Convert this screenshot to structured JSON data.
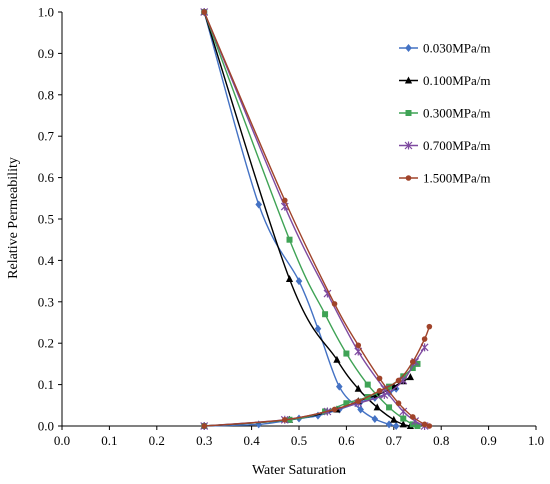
{
  "chart_data": {
    "type": "line",
    "xlabel": "Water Saturation",
    "ylabel": "Relative Permeability",
    "xlim": [
      0.0,
      1.0
    ],
    "ylim": [
      0.0,
      1.0
    ],
    "xticks": [
      "0.0",
      "0.1",
      "0.2",
      "0.3",
      "0.4",
      "0.5",
      "0.6",
      "0.7",
      "0.8",
      "0.9",
      "1.0"
    ],
    "yticks": [
      "0.0",
      "0.1",
      "0.2",
      "0.3",
      "0.4",
      "0.5",
      "0.6",
      "0.7",
      "0.8",
      "0.9",
      "1.0"
    ],
    "grid": false,
    "legend_position": "right",
    "series": [
      {
        "name": "0.030MPa/m",
        "color": "#4472C4",
        "marker": "diamond",
        "kro": [
          [
            0.3,
            1.0
          ],
          [
            0.415,
            0.535
          ],
          [
            0.5,
            0.35
          ],
          [
            0.54,
            0.235
          ],
          [
            0.585,
            0.095
          ],
          [
            0.63,
            0.04
          ],
          [
            0.66,
            0.017
          ],
          [
            0.69,
            0.004
          ],
          [
            0.705,
            0.0
          ]
        ],
        "krw": [
          [
            0.3,
            0.0
          ],
          [
            0.415,
            0.004
          ],
          [
            0.5,
            0.018
          ],
          [
            0.54,
            0.025
          ],
          [
            0.585,
            0.04
          ],
          [
            0.63,
            0.058
          ],
          [
            0.66,
            0.068
          ],
          [
            0.69,
            0.08
          ],
          [
            0.705,
            0.09
          ]
        ]
      },
      {
        "name": "0.100MPa/m",
        "color": "#000000",
        "marker": "triangle",
        "kro": [
          [
            0.3,
            1.0
          ],
          [
            0.48,
            0.355
          ],
          [
            0.58,
            0.16
          ],
          [
            0.625,
            0.09
          ],
          [
            0.665,
            0.045
          ],
          [
            0.7,
            0.015
          ],
          [
            0.72,
            0.004
          ],
          [
            0.735,
            0.0
          ]
        ],
        "krw": [
          [
            0.3,
            0.0
          ],
          [
            0.48,
            0.015
          ],
          [
            0.58,
            0.04
          ],
          [
            0.625,
            0.06
          ],
          [
            0.665,
            0.075
          ],
          [
            0.7,
            0.095
          ],
          [
            0.72,
            0.108
          ],
          [
            0.735,
            0.118
          ]
        ]
      },
      {
        "name": "0.300MPa/m",
        "color": "#3FA355",
        "marker": "square",
        "kro": [
          [
            0.3,
            1.0
          ],
          [
            0.48,
            0.45
          ],
          [
            0.555,
            0.27
          ],
          [
            0.6,
            0.175
          ],
          [
            0.645,
            0.1
          ],
          [
            0.69,
            0.045
          ],
          [
            0.72,
            0.018
          ],
          [
            0.74,
            0.004
          ],
          [
            0.75,
            0.0
          ]
        ],
        "krw": [
          [
            0.3,
            0.0
          ],
          [
            0.48,
            0.015
          ],
          [
            0.555,
            0.035
          ],
          [
            0.6,
            0.055
          ],
          [
            0.645,
            0.07
          ],
          [
            0.69,
            0.095
          ],
          [
            0.72,
            0.12
          ],
          [
            0.74,
            0.14
          ],
          [
            0.75,
            0.15
          ]
        ]
      },
      {
        "name": "0.700MPa/m",
        "color": "#7E4AA0",
        "marker": "star",
        "kro": [
          [
            0.3,
            1.0
          ],
          [
            0.47,
            0.53
          ],
          [
            0.56,
            0.32
          ],
          [
            0.625,
            0.18
          ],
          [
            0.68,
            0.09
          ],
          [
            0.72,
            0.035
          ],
          [
            0.745,
            0.012
          ],
          [
            0.765,
            0.0
          ]
        ],
        "krw": [
          [
            0.3,
            0.0
          ],
          [
            0.47,
            0.015
          ],
          [
            0.56,
            0.035
          ],
          [
            0.625,
            0.055
          ],
          [
            0.68,
            0.075
          ],
          [
            0.72,
            0.11
          ],
          [
            0.745,
            0.155
          ],
          [
            0.765,
            0.19
          ]
        ]
      },
      {
        "name": "1.500MPa/m",
        "color": "#A0432A",
        "marker": "circle",
        "kro": [
          [
            0.3,
            1.0
          ],
          [
            0.47,
            0.545
          ],
          [
            0.575,
            0.295
          ],
          [
            0.625,
            0.195
          ],
          [
            0.67,
            0.115
          ],
          [
            0.71,
            0.055
          ],
          [
            0.74,
            0.022
          ],
          [
            0.765,
            0.004
          ],
          [
            0.775,
            0.0
          ]
        ],
        "krw": [
          [
            0.3,
            0.0
          ],
          [
            0.47,
            0.015
          ],
          [
            0.575,
            0.04
          ],
          [
            0.625,
            0.06
          ],
          [
            0.67,
            0.085
          ],
          [
            0.71,
            0.11
          ],
          [
            0.74,
            0.155
          ],
          [
            0.765,
            0.21
          ],
          [
            0.775,
            0.24
          ]
        ]
      }
    ]
  }
}
